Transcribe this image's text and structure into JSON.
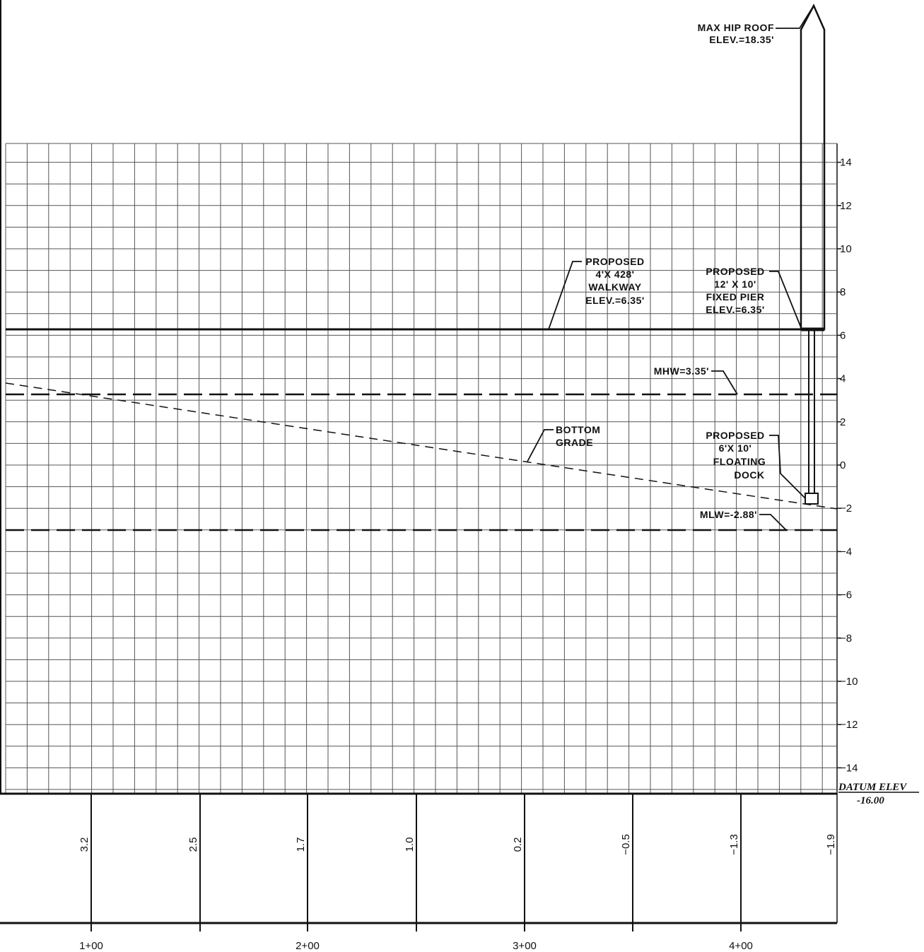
{
  "axis": {
    "y_ticks": [
      "14",
      "12",
      "10",
      "8",
      "6",
      "4",
      "2",
      "0",
      "-2",
      "-4",
      "-6",
      "-8",
      "-10",
      "-12",
      "-14"
    ],
    "x_stations": [
      "1+00",
      "2+00",
      "3+00",
      "4+00"
    ],
    "datum_label": "DATUM ELEV",
    "datum_value": "-16.00"
  },
  "grade_values": [
    "3.2",
    "2.5",
    "1.7",
    "1.0",
    "0.2",
    "-0.5",
    "-1.3",
    "-1.9"
  ],
  "labels": {
    "roof": [
      "MAX HIP ROOF",
      "ELEV.=18.35'"
    ],
    "walkway": [
      "PROPOSED",
      "4'X 428'",
      "WALKWAY",
      "ELEV.=6.35'"
    ],
    "pier": [
      "PROPOSED",
      "12' X 10'",
      "FIXED PIER",
      "ELEV.=6.35'"
    ],
    "mhw": "MHW=3.35'",
    "grade": [
      "BOTTOM",
      "GRADE"
    ],
    "dock": [
      "PROPOSED",
      "6'X 10'",
      "FLOATING",
      "DOCK"
    ],
    "mlw": "MLW=-2.88'"
  },
  "elevations": {
    "walkway": 6.35,
    "pier": 6.35,
    "mhw": 3.35,
    "mlw": -2.88,
    "roof": 18.35,
    "datum": -16.0
  },
  "line_color": "#111111",
  "grid_color": "#555555"
}
